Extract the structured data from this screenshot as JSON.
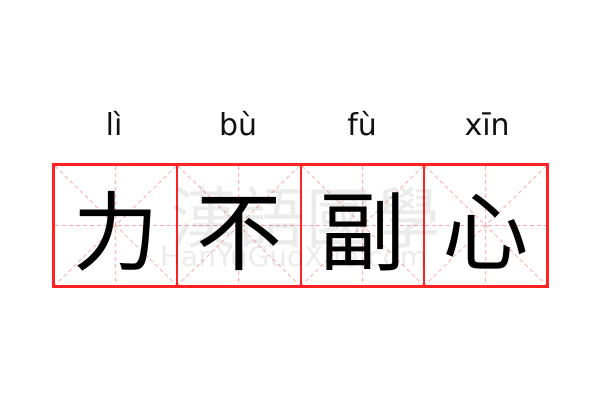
{
  "pinyin": [
    "lì",
    "bù",
    "fù",
    "xīn"
  ],
  "characters": [
    "力",
    "不",
    "副",
    "心"
  ],
  "watermark": {
    "chinese": "漢語國學",
    "latin": "HanYuGuoXue.com"
  },
  "colors": {
    "grid_border": "#ff2222",
    "guide_lines": "#ffaaaa",
    "text": "#000000"
  }
}
